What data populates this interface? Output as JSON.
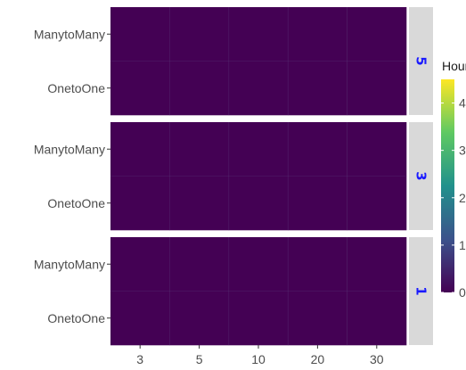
{
  "chart_data": {
    "type": "heatmap",
    "legend_title": "Hours",
    "legend_placement": "right",
    "x_ticks": [
      "3",
      "5",
      "10",
      "20",
      "30"
    ],
    "y_categories": [
      "OnetoOne",
      "ManytoMany"
    ],
    "color_scale": {
      "name": "viridis",
      "min": 0,
      "max": 4.5,
      "ticks": [
        "0",
        "1",
        "2",
        "3",
        "4"
      ],
      "colors": [
        "#440154",
        "#3b528b",
        "#21918c",
        "#5ec962",
        "#fde725"
      ]
    },
    "panels": [
      {
        "strip": "5",
        "cells": [
          [
            0,
            0,
            0,
            0,
            0
          ],
          [
            0,
            0,
            0,
            0,
            0
          ]
        ]
      },
      {
        "strip": "3",
        "cells": [
          [
            0,
            0,
            0,
            0,
            0
          ],
          [
            0,
            0,
            0,
            0,
            0
          ]
        ]
      },
      {
        "strip": "1",
        "cells": [
          [
            0,
            0,
            0,
            0,
            0
          ],
          [
            0,
            0,
            0,
            0,
            0
          ]
        ]
      }
    ],
    "grid": true
  }
}
